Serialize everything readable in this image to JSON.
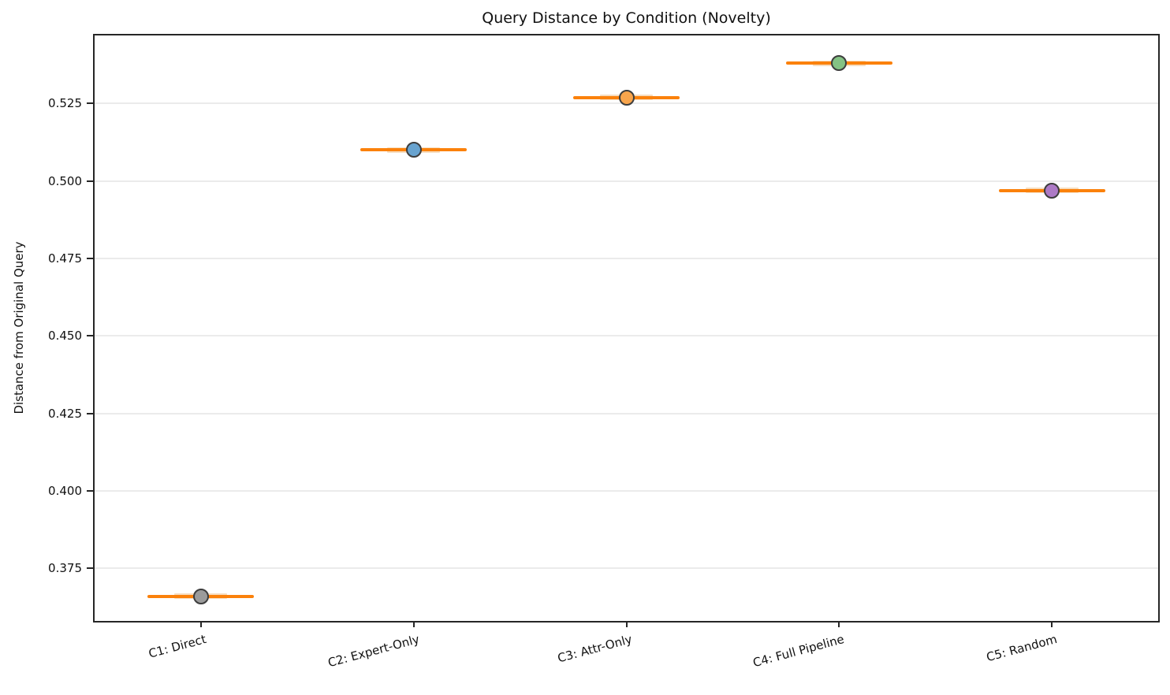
{
  "chart_data": {
    "type": "box",
    "title": "Query Distance by Condition (Novelty)",
    "xlabel": "",
    "ylabel": "Distance from Original Query",
    "categories": [
      "C1: Direct",
      "C2: Expert-Only",
      "C3: Attr-Only",
      "C4: Full Pipeline",
      "C5: Random"
    ],
    "values": [
      0.366,
      0.51,
      0.527,
      0.538,
      0.497
    ],
    "yticks": [
      0.375,
      0.4,
      0.425,
      0.45,
      0.475,
      0.5,
      0.525
    ],
    "ytick_decimals": 3,
    "ylim": [
      0.358,
      0.547
    ],
    "grid": true,
    "legend_position": "none",
    "colors": {
      "marker_fills": [
        "#9b9b9b",
        "#68a3cf",
        "#f8a54c",
        "#84c284",
        "#ad7ac6"
      ],
      "marker_edge": "#3d3d3d",
      "median_line": "#fb810b",
      "box_band": "#f6ddc0",
      "gridline": "#ebebeb",
      "spine": "#262626",
      "text": "#111111"
    }
  }
}
